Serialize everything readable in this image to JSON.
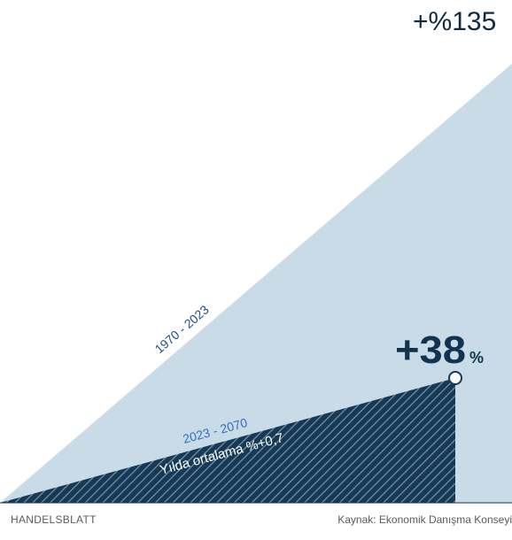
{
  "chart_data": {
    "type": "area",
    "series": [
      {
        "period": "1970 - 2023",
        "change_label": "+%135",
        "value": 135,
        "color": "#c9dbe6"
      },
      {
        "period": "2023 - 2070",
        "change_label": "+38",
        "change_unit": "%",
        "value": 38,
        "annual_label": "Yılda ortalama %+0,7",
        "color": "#163a55"
      }
    ]
  },
  "footer": {
    "brand": "HANDELSBLATT",
    "source": "Kaynak: Ekonomik Danışma Konseyi"
  }
}
